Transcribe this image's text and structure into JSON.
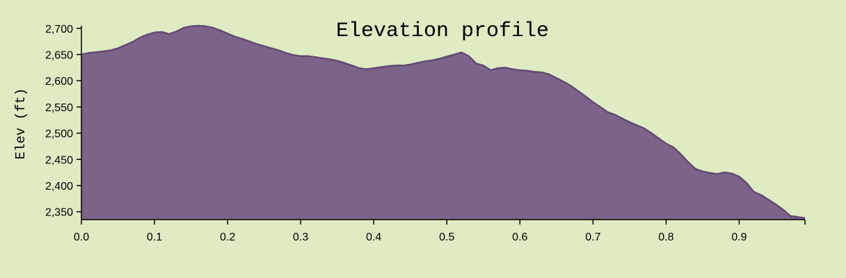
{
  "chart_data": {
    "type": "area",
    "title": "Elevation profile",
    "xlabel": "",
    "ylabel": "Elev (ft)",
    "xlim": [
      0,
      0.99
    ],
    "ylim": [
      2335,
      2705
    ],
    "x_ticks": [
      "0.0",
      "0.1",
      "0.2",
      "0.3",
      "0.4",
      "0.5",
      "0.6",
      "0.7",
      "0.8",
      "0.9"
    ],
    "y_ticks": [
      "2,350",
      "2,400",
      "2,450",
      "2,500",
      "2,550",
      "2,600",
      "2,650",
      "2,700"
    ],
    "grid": false,
    "legend": "none",
    "colors": {
      "background": "#dfebc3",
      "fill": "#7b6389",
      "stroke": "#624a72"
    },
    "series": [
      {
        "x": [
          0.0,
          0.01,
          0.03,
          0.04,
          0.05,
          0.06,
          0.07,
          0.08,
          0.09,
          0.1,
          0.11,
          0.12,
          0.13,
          0.14,
          0.15,
          0.16,
          0.17,
          0.18,
          0.19,
          0.2,
          0.21,
          0.22,
          0.23,
          0.24,
          0.25,
          0.26,
          0.27,
          0.28,
          0.29,
          0.3,
          0.31,
          0.32,
          0.33,
          0.34,
          0.35,
          0.36,
          0.37,
          0.38,
          0.39,
          0.4,
          0.41,
          0.42,
          0.43,
          0.44,
          0.45,
          0.46,
          0.47,
          0.48,
          0.49,
          0.5,
          0.51,
          0.52,
          0.53,
          0.54,
          0.55,
          0.56,
          0.57,
          0.58,
          0.59,
          0.6,
          0.61,
          0.62,
          0.63,
          0.64,
          0.65,
          0.66,
          0.67,
          0.68,
          0.69,
          0.7,
          0.71,
          0.72,
          0.73,
          0.74,
          0.75,
          0.76,
          0.77,
          0.78,
          0.79,
          0.8,
          0.81,
          0.82,
          0.83,
          0.84,
          0.85,
          0.86,
          0.87,
          0.88,
          0.89,
          0.9,
          0.91,
          0.92,
          0.93,
          0.94,
          0.95,
          0.96,
          0.97,
          0.98,
          0.99
        ],
        "values": [
          2650,
          2653,
          2656,
          2658,
          2662,
          2668,
          2674,
          2682,
          2688,
          2692,
          2693,
          2689,
          2694,
          2701,
          2704,
          2705,
          2704,
          2701,
          2696,
          2690,
          2684,
          2680,
          2675,
          2670,
          2666,
          2662,
          2658,
          2653,
          2649,
          2647,
          2647,
          2645,
          2643,
          2641,
          2638,
          2634,
          2629,
          2624,
          2622,
          2624,
          2626,
          2628,
          2629,
          2629,
          2631,
          2634,
          2637,
          2639,
          2642,
          2646,
          2650,
          2654,
          2647,
          2633,
          2629,
          2620,
          2624,
          2625,
          2622,
          2620,
          2619,
          2617,
          2616,
          2612,
          2605,
          2598,
          2590,
          2580,
          2570,
          2559,
          2550,
          2540,
          2535,
          2528,
          2521,
          2515,
          2509,
          2500,
          2490,
          2480,
          2473,
          2460,
          2445,
          2432,
          2427,
          2424,
          2422,
          2425,
          2423,
          2417,
          2405,
          2388,
          2382,
          2373,
          2364,
          2354,
          2342,
          2340,
          2338
        ]
      }
    ]
  }
}
